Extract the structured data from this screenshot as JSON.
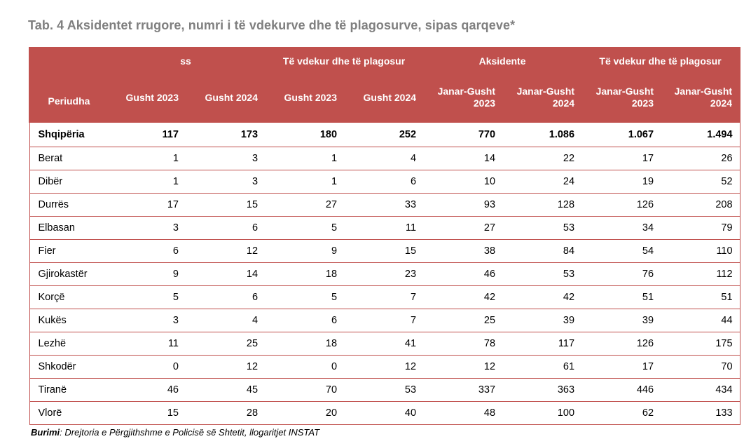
{
  "title": "Tab. 4 Aksidentet rrugore, numri i të vdekurve dhe të plagosurve, sipas qarqeve*",
  "table": {
    "corner_label": "Periudha",
    "group_headers": [
      "ss",
      "Të vdekur dhe të plagosur",
      "Aksidente",
      "Të vdekur dhe të plagosur"
    ],
    "sub_headers": [
      [
        "Gusht 2023"
      ],
      [
        "Gusht 2024"
      ],
      [
        "Gusht 2023"
      ],
      [
        "Gusht 2024"
      ],
      [
        "Janar-Gusht",
        "2023"
      ],
      [
        "Janar-Gusht",
        "2024"
      ],
      [
        "Janar-Gusht",
        "2023"
      ],
      [
        "Janar-Gusht",
        "2024"
      ]
    ],
    "total_row": {
      "region": "Shqipëria",
      "values": [
        "117",
        "173",
        "180",
        "252",
        "770",
        "1.086",
        "1.067",
        "1.494"
      ]
    },
    "rows": [
      {
        "region": "Berat",
        "values": [
          "1",
          "3",
          "1",
          "4",
          "14",
          "22",
          "17",
          "26"
        ]
      },
      {
        "region": "Dibër",
        "values": [
          "1",
          "3",
          "1",
          "6",
          "10",
          "24",
          "19",
          "52"
        ]
      },
      {
        "region": "Durrës",
        "values": [
          "17",
          "15",
          "27",
          "33",
          "93",
          "128",
          "126",
          "208"
        ]
      },
      {
        "region": "Elbasan",
        "values": [
          "3",
          "6",
          "5",
          "11",
          "27",
          "53",
          "34",
          "79"
        ]
      },
      {
        "region": "Fier",
        "values": [
          "6",
          "12",
          "9",
          "15",
          "38",
          "84",
          "54",
          "110"
        ]
      },
      {
        "region": "Gjirokastër",
        "values": [
          "9",
          "14",
          "18",
          "23",
          "46",
          "53",
          "76",
          "112"
        ]
      },
      {
        "region": "Korçë",
        "values": [
          "5",
          "6",
          "5",
          "7",
          "42",
          "42",
          "51",
          "51"
        ]
      },
      {
        "region": "Kukës",
        "values": [
          "3",
          "4",
          "6",
          "7",
          "25",
          "39",
          "39",
          "44"
        ]
      },
      {
        "region": "Lezhë",
        "values": [
          "11",
          "25",
          "18",
          "41",
          "78",
          "117",
          "126",
          "175"
        ]
      },
      {
        "region": "Shkodër",
        "values": [
          "0",
          "12",
          "0",
          "12",
          "12",
          "61",
          "17",
          "70"
        ]
      },
      {
        "region": "Tiranë",
        "values": [
          "46",
          "45",
          "70",
          "53",
          "337",
          "363",
          "446",
          "434"
        ]
      },
      {
        "region": "Vlorë",
        "values": [
          "15",
          "28",
          "20",
          "40",
          "48",
          "100",
          "62",
          "133"
        ]
      }
    ]
  },
  "source": {
    "label": "Burimi",
    "text": ": Drejtoria e Përgjithshme e Policisë së Shtetit, llogaritjet INSTAT"
  },
  "colors": {
    "header_bg": "#c0504d",
    "header_text": "#ffffff",
    "title_text": "#7f7f7f",
    "grid_lines": "#c0504d"
  }
}
